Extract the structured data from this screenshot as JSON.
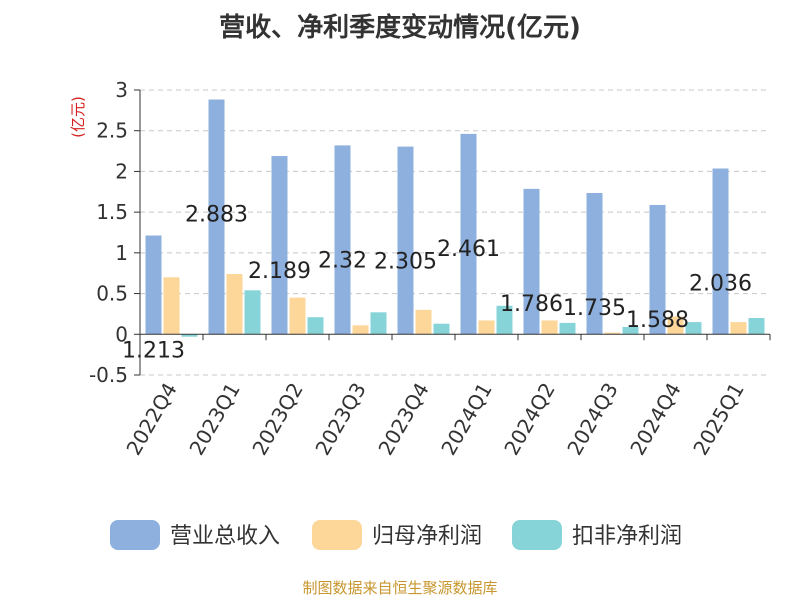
{
  "chart_data": {
    "type": "bar",
    "title": "营收、净利季度变动情况(亿元)",
    "ylabel": "(亿元)",
    "ylim": [
      -0.5,
      3
    ],
    "yticks": [
      "3",
      "2.5",
      "2",
      "1.5",
      "1",
      "0.5",
      "0",
      "-0.5"
    ],
    "categories": [
      "2022Q4",
      "2023Q1",
      "2023Q2",
      "2023Q3",
      "2023Q4",
      "2024Q1",
      "2024Q2",
      "2024Q3",
      "2024Q4",
      "2025Q1"
    ],
    "series": [
      {
        "name": "营业总收入",
        "color": "#8eb0de",
        "values": [
          1.213,
          2.883,
          2.189,
          2.32,
          2.305,
          2.461,
          1.786,
          1.735,
          1.588,
          2.036
        ]
      },
      {
        "name": "归母净利润",
        "color": "#fdd79a",
        "values": [
          0.7,
          0.74,
          0.45,
          0.11,
          0.3,
          0.17,
          0.17,
          0.02,
          0.22,
          0.15
        ]
      },
      {
        "name": "扣非净利润",
        "color": "#87d4d8",
        "values": [
          -0.03,
          0.54,
          0.21,
          0.27,
          0.13,
          0.35,
          0.14,
          0.09,
          0.15,
          0.2
        ]
      }
    ],
    "data_labels": [
      "1.213",
      "2.883",
      "2.189",
      "2.32",
      "2.305",
      "2.461",
      "1.786",
      "1.735",
      "1.588",
      "2.036"
    ],
    "grid": true,
    "legend_position": "bottom"
  },
  "source": "制图数据来自恒生聚源数据库"
}
